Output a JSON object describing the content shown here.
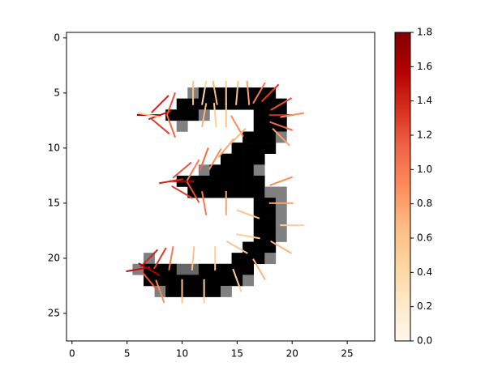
{
  "chart_data": {
    "type": "image",
    "xlim": [
      -0.5,
      27.5
    ],
    "ylim": [
      27.5,
      -0.5
    ],
    "xticks": [
      0,
      5,
      10,
      15,
      20,
      25
    ],
    "yticks": [
      0,
      5,
      10,
      15,
      20,
      25
    ],
    "image": {
      "x": [
        11,
        12,
        13,
        14,
        15,
        16,
        17,
        18,
        10,
        11,
        12,
        13,
        14,
        15,
        16,
        17,
        18,
        19,
        9,
        10,
        11,
        12,
        17,
        18,
        19,
        10,
        17,
        18,
        19,
        16,
        17,
        18,
        19,
        15,
        16,
        17,
        18,
        14,
        15,
        16,
        17,
        12,
        13,
        14,
        15,
        16,
        17,
        10,
        11,
        12,
        13,
        14,
        15,
        16,
        17,
        11,
        12,
        13,
        14,
        15,
        16,
        17,
        18,
        19,
        17,
        18,
        19,
        17,
        18,
        19,
        17,
        18,
        19,
        17,
        18,
        19,
        16,
        17,
        18,
        7,
        15,
        16,
        17,
        18,
        6,
        7,
        8,
        9,
        10,
        11,
        12,
        13,
        14,
        15,
        16,
        7,
        8,
        9,
        10,
        11,
        12,
        13,
        14,
        15,
        16,
        8,
        9,
        10,
        11,
        12,
        13,
        14
      ],
      "y": [
        5,
        5,
        5,
        5,
        5,
        5,
        5,
        5,
        6,
        6,
        6,
        6,
        6,
        6,
        6,
        6,
        6,
        6,
        7,
        7,
        7,
        7,
        7,
        7,
        7,
        8,
        8,
        8,
        8,
        9,
        9,
        9,
        9,
        10,
        10,
        10,
        10,
        11,
        11,
        11,
        11,
        12,
        12,
        12,
        12,
        12,
        12,
        13,
        13,
        13,
        13,
        13,
        13,
        13,
        13,
        14,
        14,
        14,
        14,
        14,
        14,
        14,
        14,
        14,
        15,
        15,
        15,
        16,
        16,
        16,
        17,
        17,
        17,
        18,
        18,
        18,
        19,
        19,
        19,
        20,
        20,
        20,
        20,
        20,
        21,
        21,
        21,
        21,
        21,
        21,
        21,
        21,
        21,
        21,
        21,
        22,
        22,
        22,
        22,
        22,
        22,
        22,
        22,
        22,
        22,
        23,
        23,
        23,
        23,
        23,
        23,
        23
      ],
      "values": [
        0.5,
        1,
        1,
        1,
        1,
        1,
        1,
        1,
        1,
        1,
        1,
        1,
        1,
        1,
        1,
        1,
        1,
        1,
        1,
        1,
        1,
        0.5,
        1,
        1,
        1,
        0.5,
        1,
        1,
        1,
        1,
        1,
        1,
        0.5,
        1,
        1,
        1,
        1,
        1,
        1,
        1,
        1,
        0.5,
        1,
        1,
        1,
        1,
        0.5,
        1,
        1,
        1,
        1,
        1,
        1,
        1,
        1,
        1,
        1,
        1,
        1,
        1,
        1,
        1,
        0.5,
        0.5,
        1,
        1,
        0.5,
        1,
        1,
        0.5,
        1,
        1,
        0.5,
        1,
        1,
        0.5,
        1,
        1,
        1,
        0.5,
        1,
        1,
        1,
        0.5,
        0.5,
        1,
        1,
        1,
        0.6,
        0.6,
        1,
        1,
        1,
        1,
        1,
        1,
        1,
        1,
        1,
        1,
        1,
        1,
        1,
        1,
        0.5,
        0.5,
        1,
        1,
        1,
        1,
        1,
        0.5
      ]
    },
    "segments": {
      "x": [
        7,
        8,
        8,
        8,
        9,
        9,
        7,
        11,
        12,
        13,
        14,
        15,
        16,
        17,
        18,
        19,
        19,
        19,
        20,
        19,
        12,
        13,
        14,
        15,
        10,
        9,
        10,
        10,
        11,
        12,
        13,
        14,
        15,
        11,
        12,
        14,
        19,
        19,
        20,
        19,
        16,
        16,
        15,
        17,
        7,
        6,
        7,
        8,
        7,
        8,
        10,
        12,
        9,
        11,
        13,
        15
      ],
      "y": [
        7,
        7,
        6,
        8,
        6,
        8,
        7,
        5,
        5,
        5,
        5,
        5,
        5,
        5,
        5,
        7,
        6,
        8,
        7,
        9,
        7,
        7,
        7,
        8,
        13,
        13,
        14,
        12,
        12,
        11,
        11,
        10,
        9,
        14,
        15,
        15,
        13,
        15,
        17,
        19,
        16,
        18,
        19,
        21,
        20,
        21,
        21,
        20,
        22,
        23,
        23,
        23,
        20,
        20,
        20,
        22
      ],
      "angle": [
        0,
        20,
        45,
        -40,
        70,
        -70,
        170,
        90,
        80,
        100,
        90,
        85,
        95,
        60,
        45,
        0,
        30,
        -20,
        10,
        -45,
        80,
        95,
        90,
        120,
        0,
        10,
        -30,
        40,
        60,
        70,
        60,
        50,
        45,
        -60,
        -80,
        -90,
        20,
        0,
        0,
        -30,
        160,
        170,
        150,
        -60,
        45,
        10,
        -30,
        60,
        -50,
        -70,
        -90,
        -90,
        80,
        85,
        90,
        -70
      ],
      "values": [
        1.6,
        1.5,
        1.4,
        1.3,
        1.2,
        1.1,
        0.5,
        0.6,
        0.4,
        0.7,
        0.5,
        0.6,
        0.8,
        1.0,
        1.3,
        1.4,
        1.2,
        1.1,
        0.9,
        0.8,
        0.7,
        0.5,
        0.6,
        0.9,
        1.6,
        1.4,
        1.3,
        1.2,
        1.0,
        1.1,
        0.9,
        0.8,
        0.7,
        1.2,
        1.0,
        0.8,
        0.9,
        0.8,
        0.5,
        0.7,
        0.6,
        0.5,
        0.6,
        0.7,
        1.4,
        1.5,
        1.6,
        1.3,
        1.2,
        0.9,
        0.6,
        0.5,
        1.0,
        0.6,
        0.5,
        0.5
      ]
    },
    "colormap": "OrRd",
    "colorbar": {
      "lim": [
        0,
        1.8
      ],
      "ticks": [
        {
          "value": 0,
          "label": "0.0"
        },
        0.2,
        0.4,
        0.6,
        0.8,
        {
          "value": 1,
          "label": "1.0"
        },
        1.2,
        1.4,
        1.6,
        1.8
      ]
    }
  }
}
